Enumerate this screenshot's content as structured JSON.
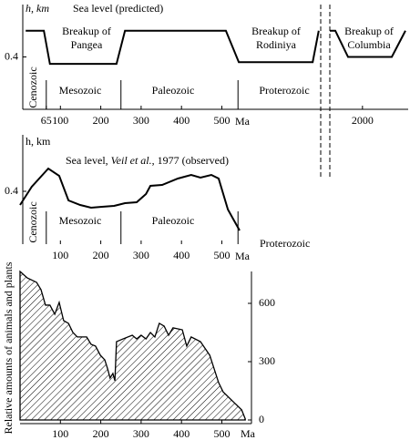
{
  "chart_data": [
    {
      "type": "line",
      "y_label": "h, km",
      "title": "Sea level (predicted)",
      "x_label": "Ma",
      "xlim": [
        0,
        740
      ],
      "xlim_after_break": [
        1500,
        2700
      ],
      "xticks": [
        65,
        100,
        200,
        300,
        400,
        500
      ],
      "xticks_after_break": [
        2000
      ],
      "ylim": [
        0.1,
        0.7
      ],
      "yticks": [
        0.4
      ],
      "periods": [
        "Cenozoic",
        "Mesozoic",
        "Paleozoic",
        "Proterozoic"
      ],
      "boundaries": [
        65,
        250,
        540
      ],
      "annotations": [
        [
          "Breakup of",
          "Pangea"
        ],
        [
          "Breakup of",
          "Rodiniya"
        ],
        [
          "Breakup of",
          "Columbia"
        ]
      ],
      "series": [
        {
          "color": "#000000",
          "x": [
            14,
            59,
            74,
            239,
            260,
            510,
            542,
            725,
            740
          ],
          "values": [
            0.55,
            0.55,
            0.36,
            0.36,
            0.55,
            0.55,
            0.37,
            0.37,
            0.55
          ]
        },
        {
          "color": "#000000",
          "axis": "after_break",
          "x": [
            1500,
            1584,
            1779,
            2449,
            2658
          ],
          "values": [
            0.55,
            0.55,
            0.4,
            0.4,
            0.55
          ]
        }
      ]
    },
    {
      "type": "line",
      "y_label": "h, km",
      "title": [
        "Sea level, ",
        "Veil et al.",
        ", 1977  (observed)"
      ],
      "x_label": "Ma",
      "xlim": [
        0,
        560
      ],
      "xticks": [
        100,
        200,
        300,
        400,
        500
      ],
      "ylim": [
        0.1,
        0.7
      ],
      "yticks": [
        0.4
      ],
      "periods": [
        "Cenozoic",
        "Mesozoic",
        "Paleozoic",
        "Proterozoic"
      ],
      "boundaries": [
        65,
        250,
        540
      ],
      "series": [
        {
          "color": "#000000",
          "x": [
            0,
            29,
            70,
            97,
            120,
            149,
            176,
            203,
            233,
            260,
            289,
            312,
            323,
            352,
            391,
            424,
            447,
            474,
            492,
            515,
            544
          ],
          "values": [
            0.325,
            0.425,
            0.525,
            0.485,
            0.35,
            0.325,
            0.31,
            0.315,
            0.32,
            0.335,
            0.34,
            0.385,
            0.43,
            0.435,
            0.47,
            0.49,
            0.475,
            0.49,
            0.47,
            0.3,
            0.185
          ]
        }
      ]
    },
    {
      "type": "area",
      "y_label": "Relative amounts of animals and plants",
      "x_label": "Ma",
      "xlim": [
        0,
        560
      ],
      "xticks": [
        100,
        200,
        300,
        400,
        500
      ],
      "ylim": [
        0,
        780
      ],
      "yticks": [
        0,
        300,
        600
      ],
      "series": [
        {
          "color": "#000000",
          "x": [
            0,
            18,
            41,
            52,
            63,
            74,
            86,
            97,
            108,
            120,
            131,
            142,
            165,
            176,
            187,
            199,
            210,
            217,
            223,
            230,
            235,
            239,
            255,
            278,
            289,
            300,
            312,
            323,
            334,
            345,
            357,
            368,
            379,
            402,
            413,
            424,
            447,
            470,
            492,
            503,
            526,
            549,
            558
          ],
          "values": [
            764,
            731,
            708,
            670,
            591,
            591,
            544,
            605,
            511,
            497,
            450,
            427,
            427,
            389,
            380,
            333,
            309,
            263,
            216,
            239,
            202,
            403,
            417,
            436,
            417,
            436,
            417,
            450,
            427,
            497,
            483,
            436,
            474,
            464,
            380,
            427,
            403,
            333,
            192,
            145,
            98,
            52,
            5
          ]
        }
      ]
    }
  ]
}
